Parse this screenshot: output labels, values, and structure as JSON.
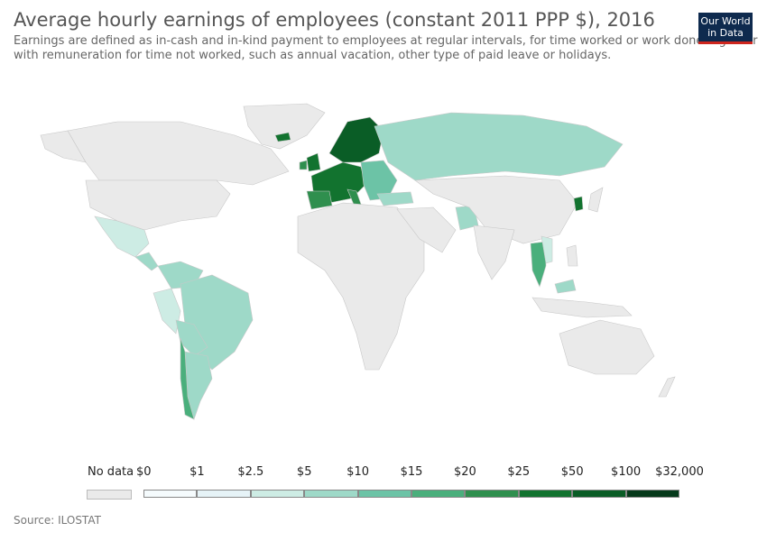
{
  "title": "Average hourly earnings of employees (constant 2011 PPP $), 2016",
  "subtitle": "Earnings are defined as in-cash and in-kind payment to employees at regular intervals, for time worked or work done together with remuneration for time not worked, such as annual vacation, other type of paid leave or holidays.",
  "logo": {
    "line1": "Our World",
    "line2": "in Data"
  },
  "legend": {
    "no_data_label": "No data",
    "bins": [
      {
        "label": "$0",
        "color": "#f5fbfd"
      },
      {
        "label": "$1",
        "color": "#e6f3f7"
      },
      {
        "label": "$2.5",
        "color": "#cdece4"
      },
      {
        "label": "$5",
        "color": "#9ed9c8"
      },
      {
        "label": "$10",
        "color": "#6cc3a6"
      },
      {
        "label": "$15",
        "color": "#4aaf7c"
      },
      {
        "label": "$20",
        "color": "#2f8f4e"
      },
      {
        "label": "$25",
        "color": "#12732f"
      },
      {
        "label": "$50",
        "color": "#0a5d26"
      },
      {
        "label": "$100",
        "color": "#0a4a1f"
      },
      {
        "label": "$32,000",
        "color": ""
      }
    ],
    "no_data_color": "#eaeaea"
  },
  "source": "Source: ILOSTAT"
}
